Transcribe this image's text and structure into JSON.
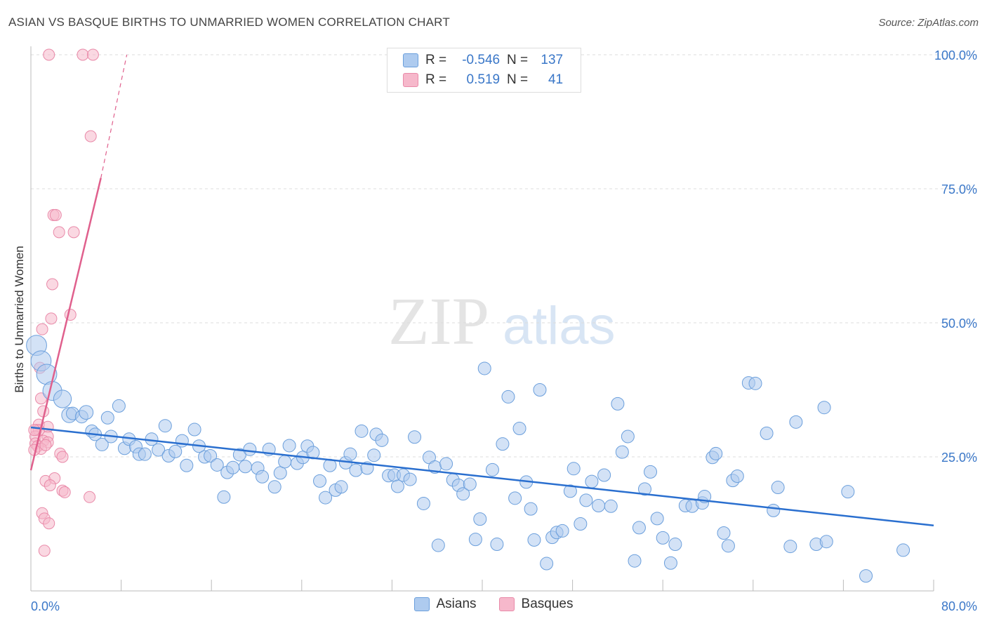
{
  "title": "ASIAN VS BASQUE BIRTHS TO UNMARRIED WOMEN CORRELATION CHART",
  "source": "Source: ZipAtlas.com",
  "watermark": {
    "zip": "ZIP",
    "atlas": "atlas"
  },
  "legend_top": [
    {
      "r_label": "R =",
      "r_value": "-0.546",
      "n_label": "N =",
      "n_value": "137"
    },
    {
      "r_label": "R =",
      "r_value": " 0.519",
      "n_label": "N =",
      "n_value": " 41"
    }
  ],
  "legend_bottom": {
    "asians": "Asians",
    "basques": "Basques"
  },
  "colors": {
    "asian_fill": "#aecbef",
    "asian_stroke": "#6b9fdc",
    "asian_line": "#2a6fcf",
    "basque_fill": "#f6b8cb",
    "basque_stroke": "#e98aa9",
    "basque_line": "#e0608d",
    "axis_text": "#3a77c8",
    "grid": "#dddddd"
  },
  "chart_data": {
    "type": "scatter",
    "title": "ASIAN VS BASQUE BIRTHS TO UNMARRIED WOMEN CORRELATION CHART",
    "xlabel": "",
    "ylabel": "Births to Unmarried Women",
    "xlim": [
      0,
      80
    ],
    "ylim": [
      0,
      100
    ],
    "x_tick_labels": {
      "min": "0.0%",
      "max": "80.0%"
    },
    "y_ticks": [
      {
        "value": 25,
        "label": "25.0%"
      },
      {
        "value": 50,
        "label": "50.0%"
      },
      {
        "value": 75,
        "label": "75.0%"
      },
      {
        "value": 100,
        "label": "100.0%"
      }
    ],
    "grid": true,
    "legend_placement": "top-center",
    "series": [
      {
        "name": "Asians",
        "r": -0.546,
        "n": 137,
        "trend": {
          "x0": 0,
          "y0": 30.5,
          "x1": 80,
          "y1": 12.2
        },
        "points": [
          [
            0.5,
            45.8,
            1.6
          ],
          [
            0.9,
            42.9,
            1.6
          ],
          [
            1.4,
            40.4,
            1.6
          ],
          [
            1.9,
            37.3,
            1.5
          ],
          [
            2.8,
            35.8,
            1.4
          ],
          [
            3.4,
            32.8,
            1.2
          ],
          [
            3.7,
            33.1,
            1.0
          ],
          [
            4.5,
            32.5,
            1.0
          ],
          [
            4.9,
            33.3,
            1.1
          ],
          [
            5.4,
            29.8,
            1.0
          ],
          [
            5.7,
            29.2,
            1.0
          ],
          [
            6.3,
            27.3,
            1.0
          ],
          [
            6.8,
            32.3,
            1.0
          ],
          [
            7.1,
            28.8,
            1.0
          ],
          [
            7.8,
            34.5,
            1.0
          ],
          [
            8.3,
            26.6,
            1.0
          ],
          [
            8.7,
            28.3,
            1.0
          ],
          [
            9.3,
            26.9,
            1.0
          ],
          [
            9.6,
            25.5,
            1.0
          ],
          [
            10.1,
            25.5,
            1.0
          ],
          [
            10.7,
            28.3,
            1.0
          ],
          [
            11.3,
            26.3,
            1.0
          ],
          [
            11.9,
            30.8,
            1.0
          ],
          [
            12.2,
            25.2,
            1.0
          ],
          [
            12.8,
            26.0,
            1.0
          ],
          [
            13.4,
            28.0,
            1.0
          ],
          [
            13.8,
            23.4,
            1.0
          ],
          [
            14.5,
            30.1,
            1.0
          ],
          [
            14.9,
            27.0,
            1.0
          ],
          [
            15.4,
            25.0,
            1.0
          ],
          [
            15.9,
            25.2,
            1.0
          ],
          [
            16.5,
            23.5,
            1.0
          ],
          [
            17.1,
            17.5,
            1.0
          ],
          [
            17.4,
            22.1,
            1.0
          ],
          [
            17.9,
            23.0,
            1.0
          ],
          [
            18.5,
            25.4,
            1.0
          ],
          [
            19.0,
            23.2,
            1.0
          ],
          [
            19.4,
            26.4,
            1.0
          ],
          [
            20.1,
            22.9,
            1.0
          ],
          [
            20.5,
            21.3,
            1.0
          ],
          [
            21.1,
            26.4,
            1.0
          ],
          [
            21.6,
            19.4,
            1.0
          ],
          [
            22.1,
            22.0,
            1.0
          ],
          [
            22.5,
            24.1,
            1.0
          ],
          [
            22.9,
            27.1,
            1.0
          ],
          [
            23.6,
            23.8,
            1.0
          ],
          [
            24.1,
            24.9,
            1.0
          ],
          [
            24.5,
            27.0,
            1.0
          ],
          [
            25.0,
            25.8,
            1.0
          ],
          [
            25.6,
            20.5,
            1.0
          ],
          [
            26.1,
            17.4,
            1.0
          ],
          [
            26.5,
            23.4,
            1.0
          ],
          [
            27.0,
            18.8,
            1.0
          ],
          [
            27.5,
            19.4,
            1.0
          ],
          [
            27.9,
            23.9,
            1.0
          ],
          [
            28.3,
            25.5,
            1.0
          ],
          [
            28.8,
            22.5,
            1.0
          ],
          [
            29.3,
            29.8,
            1.0
          ],
          [
            29.8,
            22.9,
            1.0
          ],
          [
            30.4,
            25.3,
            1.0
          ],
          [
            30.6,
            29.2,
            1.0
          ],
          [
            31.1,
            28.1,
            1.0
          ],
          [
            31.7,
            21.5,
            1.0
          ],
          [
            32.2,
            21.6,
            1.0
          ],
          [
            32.5,
            19.5,
            1.0
          ],
          [
            33.0,
            21.6,
            1.0
          ],
          [
            33.6,
            20.8,
            1.0
          ],
          [
            34.0,
            28.7,
            1.0
          ],
          [
            34.8,
            16.3,
            1.0
          ],
          [
            35.3,
            24.9,
            1.0
          ],
          [
            35.8,
            23.1,
            1.0
          ],
          [
            36.1,
            8.5,
            1.0
          ],
          [
            36.8,
            23.7,
            1.0
          ],
          [
            37.4,
            20.7,
            1.0
          ],
          [
            37.9,
            19.7,
            1.0
          ],
          [
            38.3,
            18.1,
            1.0
          ],
          [
            38.9,
            19.9,
            1.0
          ],
          [
            39.4,
            9.6,
            1.0
          ],
          [
            39.8,
            13.4,
            1.0
          ],
          [
            40.2,
            41.5,
            1.0
          ],
          [
            40.9,
            22.6,
            1.0
          ],
          [
            41.3,
            8.7,
            1.0
          ],
          [
            41.8,
            27.4,
            1.0
          ],
          [
            42.3,
            36.2,
            1.0
          ],
          [
            42.9,
            17.3,
            1.0
          ],
          [
            43.3,
            30.3,
            1.0
          ],
          [
            43.9,
            20.3,
            1.0
          ],
          [
            44.3,
            15.3,
            1.0
          ],
          [
            44.6,
            9.5,
            1.0
          ],
          [
            45.1,
            37.5,
            1.0
          ],
          [
            45.7,
            5.1,
            1.0
          ],
          [
            46.2,
            10.0,
            1.0
          ],
          [
            46.6,
            10.9,
            1.0
          ],
          [
            47.1,
            11.2,
            1.0
          ],
          [
            47.8,
            18.6,
            1.0
          ],
          [
            48.1,
            22.8,
            1.0
          ],
          [
            48.7,
            12.5,
            1.0
          ],
          [
            49.2,
            16.9,
            1.0
          ],
          [
            49.7,
            20.4,
            1.0
          ],
          [
            50.3,
            15.9,
            1.0
          ],
          [
            50.8,
            21.6,
            1.0
          ],
          [
            51.4,
            15.8,
            1.0
          ],
          [
            52.0,
            34.9,
            1.0
          ],
          [
            52.4,
            25.9,
            1.0
          ],
          [
            52.9,
            28.8,
            1.0
          ],
          [
            53.5,
            5.6,
            1.0
          ],
          [
            53.9,
            11.8,
            1.0
          ],
          [
            54.4,
            19.0,
            1.0
          ],
          [
            54.9,
            22.2,
            1.0
          ],
          [
            55.5,
            13.5,
            1.0
          ],
          [
            56.0,
            9.9,
            1.0
          ],
          [
            56.7,
            5.2,
            1.0
          ],
          [
            57.1,
            8.7,
            1.0
          ],
          [
            58.0,
            15.9,
            1.0
          ],
          [
            58.6,
            15.8,
            1.0
          ],
          [
            59.5,
            16.4,
            1.0
          ],
          [
            59.7,
            17.6,
            1.0
          ],
          [
            60.4,
            24.9,
            1.0
          ],
          [
            60.7,
            25.6,
            1.0
          ],
          [
            61.4,
            10.8,
            1.0
          ],
          [
            61.8,
            8.4,
            1.0
          ],
          [
            62.2,
            20.6,
            1.0
          ],
          [
            62.6,
            21.4,
            1.0
          ],
          [
            63.6,
            38.8,
            1.0
          ],
          [
            64.2,
            38.7,
            1.0
          ],
          [
            65.2,
            29.4,
            1.0
          ],
          [
            65.8,
            15.0,
            1.0
          ],
          [
            66.2,
            19.3,
            1.0
          ],
          [
            67.3,
            8.3,
            1.0
          ],
          [
            67.8,
            31.5,
            1.0
          ],
          [
            69.6,
            8.7,
            1.0
          ],
          [
            70.3,
            34.2,
            1.0
          ],
          [
            70.5,
            9.2,
            1.0
          ],
          [
            72.4,
            18.5,
            1.0
          ],
          [
            74.0,
            2.8,
            1.0
          ],
          [
            77.3,
            7.6,
            1.0
          ]
        ]
      },
      {
        "name": "Basques",
        "r": 0.519,
        "n": 41,
        "trend": {
          "x0": 0,
          "y0": 22.5,
          "x1": 6.2,
          "y1": 77.0,
          "dash_x1": 8.5,
          "dash_y1": 100
        },
        "points": [
          [
            1.6,
            100.0
          ],
          [
            4.6,
            100.0
          ],
          [
            5.5,
            100.0
          ],
          [
            5.3,
            84.8
          ],
          [
            2.0,
            70.1
          ],
          [
            2.2,
            70.1
          ],
          [
            2.5,
            66.9
          ],
          [
            3.8,
            66.9
          ],
          [
            1.9,
            57.2
          ],
          [
            3.5,
            51.5
          ],
          [
            1.8,
            50.8
          ],
          [
            1.0,
            48.8
          ],
          [
            0.8,
            41.6
          ],
          [
            0.9,
            35.9
          ],
          [
            1.1,
            33.5
          ],
          [
            0.7,
            31.0
          ],
          [
            1.5,
            30.6
          ],
          [
            0.5,
            30.0
          ],
          [
            0.7,
            30.0
          ],
          [
            0.4,
            28.8
          ],
          [
            1.5,
            28.8
          ],
          [
            1.1,
            28.0
          ],
          [
            0.4,
            27.5
          ],
          [
            1.5,
            27.7
          ],
          [
            0.6,
            27.0
          ],
          [
            0.9,
            26.5
          ],
          [
            1.3,
            27.2
          ],
          [
            0.3,
            26.3
          ],
          [
            2.6,
            25.6
          ],
          [
            2.8,
            25.0
          ],
          [
            1.3,
            20.5
          ],
          [
            2.1,
            21.0
          ],
          [
            1.7,
            19.7
          ],
          [
            2.8,
            18.7
          ],
          [
            3.0,
            18.4
          ],
          [
            5.2,
            17.5
          ],
          [
            1.0,
            14.5
          ],
          [
            1.2,
            13.5
          ],
          [
            1.6,
            12.6
          ],
          [
            1.2,
            7.5
          ],
          [
            0.3,
            30.0
          ]
        ]
      }
    ]
  }
}
